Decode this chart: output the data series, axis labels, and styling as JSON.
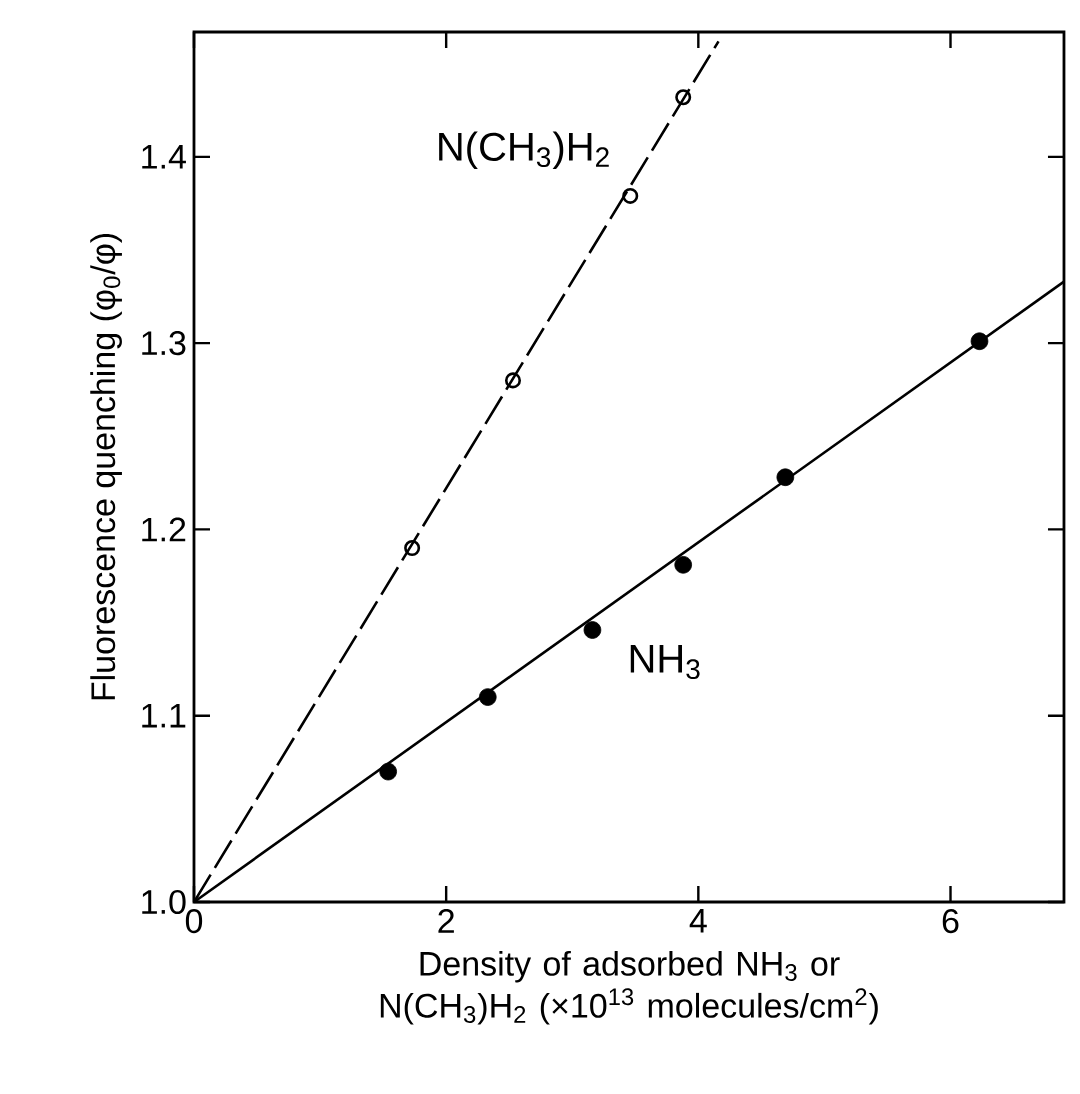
{
  "chart_data": {
    "type": "scatter",
    "xlabel": "Density of adsorbed NH$_{3}$ or N(CH$_{3}$)H$_{2}$ (×10$^{13}$ molecules/cm$^{2}$)",
    "ylabel": "Fluorescence quenching (φ$_{0}$/φ)",
    "xlim": [
      0,
      6.9
    ],
    "ylim": [
      1.0,
      1.467
    ],
    "xticks": [
      0,
      2,
      4,
      6
    ],
    "yticks": [
      {
        "value": 1.0,
        "label": "1.0"
      },
      {
        "value": 1.1,
        "label": "1.1"
      },
      {
        "value": 1.2,
        "label": "1.2"
      },
      {
        "value": 1.3,
        "label": "1.3"
      },
      {
        "value": 1.4,
        "label": "1.4"
      }
    ],
    "grid": false,
    "marker": "circle",
    "series": [
      {
        "name": "NH$_{3}$",
        "color": "#000000",
        "x": [
          1.54,
          2.33,
          3.16,
          3.88,
          4.69,
          6.23
        ],
        "values": [
          1.07,
          1.11,
          1.146,
          1.181,
          1.228,
          1.301
        ]
      },
      {
        "name": "N(CH$_{3}$)H$_{2}$",
        "color": "#000000",
        "x": [
          1.73,
          2.53,
          3.46,
          3.88
        ],
        "values": [
          1.19,
          1.28,
          1.379,
          1.432
        ]
      },
      {
        "type": "line",
        "color": "#000000",
        "marker": "none",
        "line_style": "solid",
        "x": [
          0,
          6.9
        ],
        "values": [
          1.0,
          1.333
        ]
      },
      {
        "type": "line",
        "color": "#000000",
        "marker": "none",
        "line_style": "dashed",
        "x": [
          0,
          4.16
        ],
        "values": [
          1.0,
          1.462
        ]
      }
    ]
  }
}
